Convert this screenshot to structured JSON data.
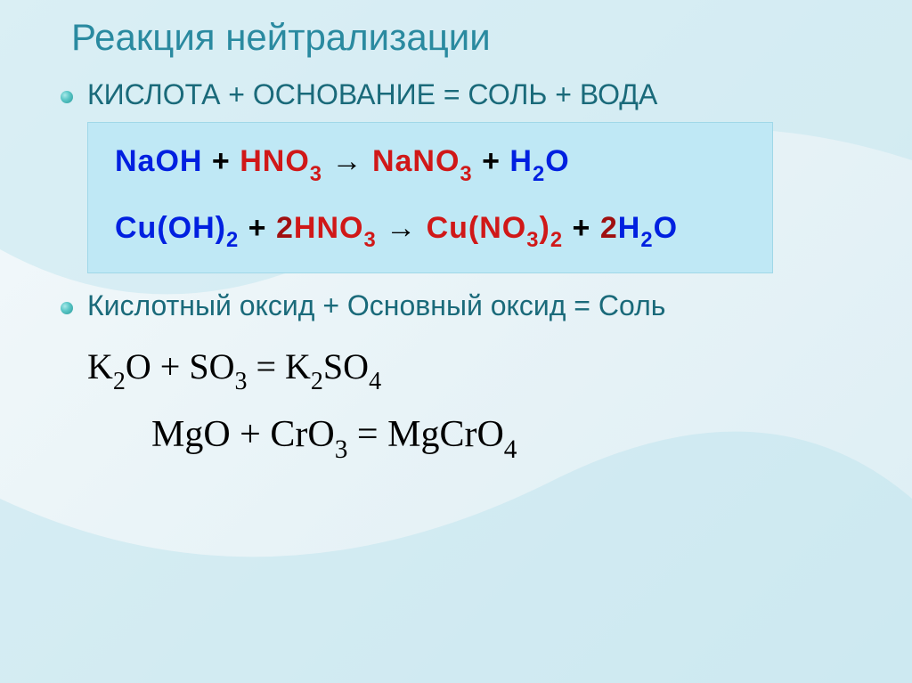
{
  "title": {
    "text": "Реакция нейтрализации",
    "color": "#2a8aa0"
  },
  "rules": [
    {
      "text": "КИСЛОТА + ОСНОВАНИЕ = СОЛЬ + ВОДА",
      "color": "#1a6a7a"
    },
    {
      "text": "Кислотный оксид + Основный оксид = Соль",
      "color": "#1a6a7a"
    }
  ],
  "boxed_equations": {
    "background": "#bfe8f5",
    "lines": [
      {
        "parts": [
          {
            "t": "NaOH ",
            "c": "blue"
          },
          {
            "t": "+ ",
            "c": "black"
          },
          {
            "t": "HNO",
            "c": "red"
          },
          {
            "t": "3",
            "c": "red",
            "sub": true
          },
          {
            "t": " → ",
            "c": "black"
          },
          {
            "t": "NaNO",
            "c": "red"
          },
          {
            "t": "3",
            "c": "red",
            "sub": true
          },
          {
            "t": " + ",
            "c": "black"
          },
          {
            "t": "H",
            "c": "blue"
          },
          {
            "t": "2",
            "c": "blue",
            "sub": true
          },
          {
            "t": "O",
            "c": "blue"
          }
        ]
      },
      {
        "parts": [
          {
            "t": "Cu(OH)",
            "c": "blue"
          },
          {
            "t": "2",
            "c": "blue",
            "sub": true
          },
          {
            "t": " + ",
            "c": "black"
          },
          {
            "t": "2",
            "c": "darkred"
          },
          {
            "t": "HNO",
            "c": "red"
          },
          {
            "t": "3",
            "c": "red",
            "sub": true
          },
          {
            "t": " → ",
            "c": "black"
          },
          {
            "t": "Cu(NO",
            "c": "red"
          },
          {
            "t": "3",
            "c": "red",
            "sub": true
          },
          {
            "t": ")",
            "c": "red"
          },
          {
            "t": "2",
            "c": "red",
            "sub": true
          },
          {
            "t": " + ",
            "c": "black"
          },
          {
            "t": "2",
            "c": "darkred"
          },
          {
            "t": "H",
            "c": "blue"
          },
          {
            "t": "2",
            "c": "blue",
            "sub": true
          },
          {
            "t": "O",
            "c": "blue"
          }
        ]
      }
    ]
  },
  "plain_equations": [
    {
      "class": "eqk",
      "parts": [
        {
          "t": "K"
        },
        {
          "t": "2",
          "sub": true
        },
        {
          "t": "O + SO"
        },
        {
          "t": "3",
          "sub": true
        },
        {
          "t": " = K"
        },
        {
          "t": "2",
          "sub": true
        },
        {
          "t": "SO"
        },
        {
          "t": "4",
          "sub": true
        }
      ]
    },
    {
      "class": "eqk2",
      "parts": [
        {
          "t": "MgO + CrO"
        },
        {
          "t": "3",
          "sub": true
        },
        {
          "t": " = MgCrO"
        },
        {
          "t": "4",
          "sub": true
        }
      ]
    }
  ],
  "bullet_style": {
    "gradient": "radial-gradient(circle at 35% 35%, #a8e8e8 0%, #5cc8c8 40%, #2a9a9a 100%)"
  },
  "background": {
    "base_gradient": "linear-gradient(135deg, #f4f9fb 0%, #e8f3f7 50%, #dceef4 100%)",
    "curve_color": "rgba(180,220,230,0.55)"
  }
}
